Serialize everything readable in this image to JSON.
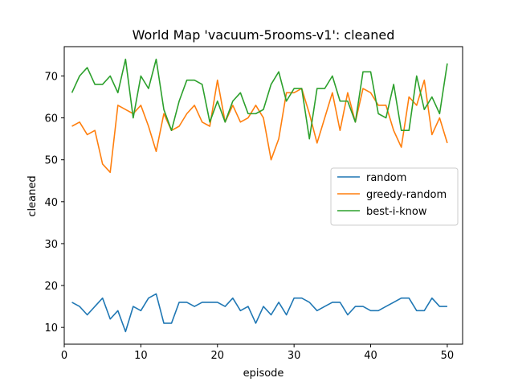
{
  "chart_data": {
    "type": "line",
    "title": "World Map 'vacuum-5rooms-v1': cleaned",
    "xlabel": "episode",
    "ylabel": "cleaned",
    "xlim": [
      0,
      52
    ],
    "ylim": [
      6,
      77
    ],
    "xticks": [
      0,
      10,
      20,
      30,
      40,
      50
    ],
    "yticks": [
      10,
      20,
      30,
      40,
      50,
      60,
      70
    ],
    "grid": false,
    "legend_position": "center-right",
    "x": [
      1,
      2,
      3,
      4,
      5,
      6,
      7,
      8,
      9,
      10,
      11,
      12,
      13,
      14,
      15,
      16,
      17,
      18,
      19,
      20,
      21,
      22,
      23,
      24,
      25,
      26,
      27,
      28,
      29,
      30,
      31,
      32,
      33,
      34,
      35,
      36,
      37,
      38,
      39,
      40,
      41,
      42,
      43,
      44,
      45,
      46,
      47,
      48,
      49,
      50
    ],
    "series": [
      {
        "name": "random",
        "color": "#1f77b4",
        "values": [
          16,
          15,
          13,
          15,
          17,
          12,
          14,
          9,
          15,
          14,
          17,
          18,
          11,
          11,
          16,
          16,
          15,
          16,
          16,
          16,
          15,
          17,
          14,
          15,
          11,
          15,
          13,
          16,
          13,
          17,
          17,
          16,
          14,
          15,
          16,
          16,
          13,
          15,
          15,
          14,
          14,
          15,
          16,
          17,
          17,
          14,
          14,
          17,
          15,
          15
        ]
      },
      {
        "name": "greedy-random",
        "color": "#ff7f0e",
        "values": [
          58,
          59,
          56,
          57,
          49,
          47,
          63,
          62,
          61,
          63,
          58,
          52,
          61,
          57,
          58,
          61,
          63,
          59,
          58,
          69,
          59,
          63,
          59,
          60,
          63,
          60,
          50,
          55,
          66,
          66,
          67,
          61,
          54,
          60,
          66,
          57,
          66,
          59,
          67,
          66,
          63,
          63,
          57,
          53,
          65,
          63,
          69,
          56,
          60,
          54
        ]
      },
      {
        "name": "best-i-know",
        "color": "#2ca02c",
        "values": [
          66,
          70,
          72,
          68,
          68,
          70,
          66,
          74,
          60,
          70,
          67,
          74,
          62,
          57,
          64,
          69,
          69,
          68,
          59,
          64,
          59,
          64,
          66,
          61,
          61,
          62,
          68,
          71,
          64,
          67,
          67,
          55,
          67,
          67,
          70,
          64,
          64,
          59,
          71,
          71,
          61,
          60,
          68,
          57,
          57,
          70,
          62,
          65,
          61,
          73
        ]
      }
    ]
  }
}
